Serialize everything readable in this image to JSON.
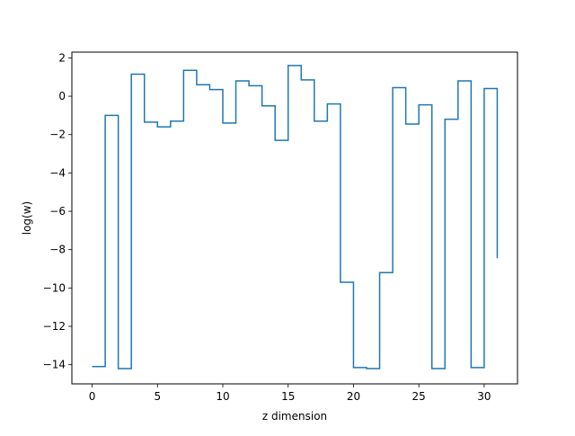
{
  "chart_data": {
    "type": "line",
    "drawstyle": "steps-post",
    "title": "",
    "xlabel": "z dimension",
    "ylabel": "log(w)",
    "xlim": [
      -1.55,
      32.55
    ],
    "ylim": [
      -15.0,
      2.3
    ],
    "xticks": [
      0,
      5,
      10,
      15,
      20,
      25,
      30
    ],
    "yticks": [
      -14,
      -12,
      -10,
      -8,
      -6,
      -4,
      -2,
      0,
      2
    ],
    "grid": false,
    "legend": "none",
    "series": [
      {
        "color": "#1f77b4",
        "x": [
          0,
          1,
          2,
          3,
          4,
          5,
          6,
          7,
          8,
          9,
          10,
          11,
          12,
          13,
          14,
          15,
          16,
          17,
          18,
          19,
          20,
          21,
          22,
          23,
          24,
          25,
          26,
          27,
          28,
          29,
          30,
          31
        ],
        "values": [
          -14.1,
          -1.0,
          -14.2,
          1.15,
          -1.35,
          -1.6,
          -1.3,
          1.35,
          0.6,
          0.35,
          -1.4,
          0.8,
          0.55,
          -0.5,
          -2.3,
          1.6,
          0.85,
          -1.3,
          -0.4,
          -9.7,
          -14.15,
          -14.2,
          -9.2,
          0.45,
          -1.45,
          -0.45,
          -14.2,
          -1.2,
          0.8,
          -14.15,
          0.4,
          -8.45
        ]
      }
    ]
  }
}
